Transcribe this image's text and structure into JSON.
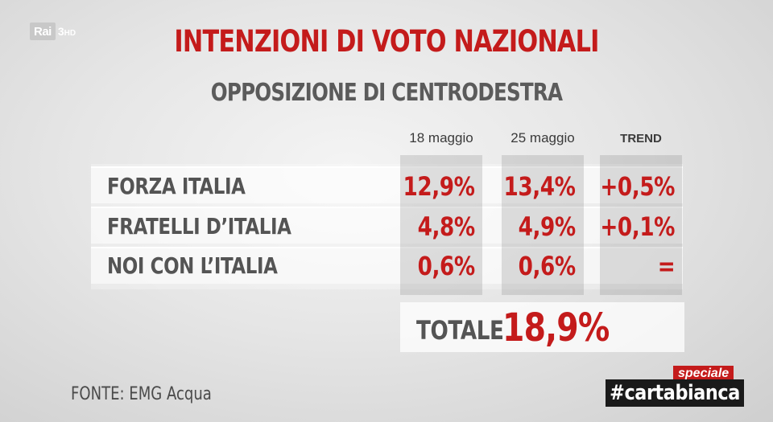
{
  "channel": {
    "logo_text": "Rai",
    "number": "3",
    "hd": "HD"
  },
  "header": {
    "title": "INTENZIONI DI VOTO NAZIONALI",
    "subtitle": "OPPOSIZIONE DI CENTRODESTRA"
  },
  "chart_data": {
    "type": "table",
    "columns": [
      "18 maggio",
      "25 maggio",
      "TREND"
    ],
    "rows": [
      {
        "party": "FORZA ITALIA",
        "may18": "12,9%",
        "may25": "13,4%",
        "trend": "+0,5%"
      },
      {
        "party": "FRATELLI D’ITALIA",
        "may18": "4,8%",
        "may25": "4,9%",
        "trend": "+0,1%"
      },
      {
        "party": "NOI CON L’ITALIA",
        "may18": "0,6%",
        "may25": "0,6%",
        "trend": "="
      }
    ],
    "total_label": "TOTALE",
    "total_value": "18,9%"
  },
  "footer": {
    "source": "FONTE: EMG Acqua"
  },
  "brand": {
    "speciale": "speciale",
    "name": "#cartabianca"
  },
  "colors": {
    "accent_red": "#c41b1b",
    "text_gray": "#545454"
  }
}
